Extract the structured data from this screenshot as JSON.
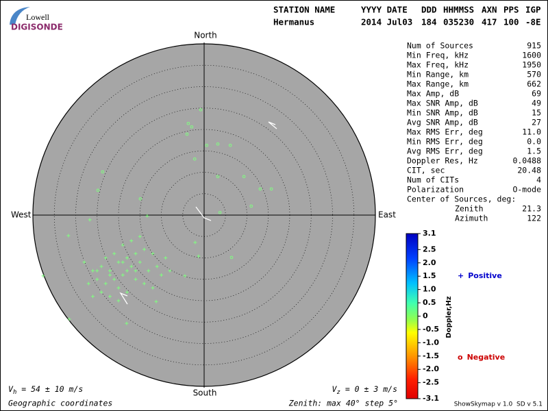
{
  "logo": {
    "top": "Lowell",
    "bottom": "DIGISONDE"
  },
  "header": {
    "columns": [
      "STATION NAME",
      "YYYY DATE",
      "DDD",
      "HHMMSS",
      "AXN",
      "PPS",
      "IGP"
    ],
    "values": [
      "Hermanus",
      "2014 Jul03",
      "184",
      "035230",
      "417",
      "100",
      "-8E"
    ]
  },
  "stats": {
    "rows": [
      [
        "Num of Sources",
        "915"
      ],
      [
        "Min Freq, kHz",
        "1600"
      ],
      [
        "Max Freq, kHz",
        "1950"
      ],
      [
        "Min Range, km",
        "570"
      ],
      [
        "Max Range, km",
        "662"
      ],
      [
        "Max Amp, dB",
        "69"
      ],
      [
        "Max SNR Amp, dB",
        "49"
      ],
      [
        "Min SNR Amp, dB",
        "15"
      ],
      [
        "Avg SNR Amp, dB",
        "27"
      ],
      [
        "Max RMS Err, deg",
        "11.0"
      ],
      [
        "Min RMS Err, deg",
        "0.0"
      ],
      [
        "Avg RMS Err, deg",
        "1.5"
      ],
      [
        "Doppler Res, Hz",
        "0.0488"
      ],
      [
        "CIT, sec",
        "20.48"
      ],
      [
        "Num of CITs",
        "4"
      ],
      [
        "Polarization",
        "O-mode"
      ]
    ],
    "center_title": "Center of Sources, deg:",
    "center": [
      [
        "Zenith",
        "21.3"
      ],
      [
        "Azimuth",
        "122"
      ]
    ]
  },
  "footer": {
    "vh": {
      "symbol": "V",
      "sub": "h",
      "text": " = 54 ± 10 m/s"
    },
    "vz": {
      "symbol": "V",
      "sub": "z",
      "text": " = 0 ± 3 m/s"
    },
    "coords": "Geographic coordinates",
    "zenith": "Zenith: max 40°  step 5°",
    "version": "ShowSkymap v 1.0  SD v 5.1"
  },
  "chart_data": {
    "type": "polar",
    "directions": {
      "north": "North",
      "south": "South",
      "east": "East",
      "west": "West"
    },
    "rlim": [
      0,
      40
    ],
    "rticks": [
      5,
      10,
      15,
      20,
      25,
      30,
      35,
      40
    ],
    "xlim": [
      -40,
      40
    ],
    "ylim": [
      -40,
      40
    ],
    "background": "#a6a6a6",
    "series": [
      {
        "name": "Positive",
        "marker": "+",
        "color": "#0000cc",
        "mark_color": "#80ff80",
        "x": [
          -26,
          -24,
          -22,
          -20,
          -18,
          -16,
          -19,
          -21,
          -23,
          -25,
          -17,
          -15,
          -14,
          -12,
          -13,
          -11,
          -20,
          -18,
          -22,
          -27,
          -24,
          -16,
          -10,
          -9,
          -21,
          -19,
          -23,
          -17,
          -15,
          -28,
          -26,
          -20,
          -14,
          -12,
          -8,
          -18,
          -22,
          -25,
          -19,
          -16,
          -31.7,
          -37.6,
          -31.5,
          -18.1,
          -11.2,
          -4.5,
          -2.1,
          -1.3,
          -13.3,
          -26.7
        ],
        "y": [
          -13,
          -12,
          -13,
          -11,
          -10,
          -9,
          -14,
          -15,
          -16,
          -15,
          -12,
          -11,
          -8,
          -9,
          -13,
          -12,
          -17,
          -18,
          -19,
          -16,
          -18,
          -15,
          -14,
          -10,
          -9,
          -7,
          -10,
          -6,
          -5,
          -11,
          -19,
          -20,
          -16,
          -17,
          -13,
          -13,
          -14,
          -13,
          -11,
          -13,
          -4.8,
          -14.2,
          -24.3,
          -25.3,
          -20.2,
          -14.2,
          -6.4,
          -9.6,
          -0.2,
          -1.1
        ]
      },
      {
        "name": "Negative",
        "marker": "o",
        "color": "#cc0000",
        "mark_color": "#80ff80",
        "x": [
          -0.8,
          -3.7,
          -2.9,
          -4,
          0.6,
          3.2,
          6.1,
          -2.2,
          3.2,
          9.3,
          13.1,
          15.7,
          -23.7,
          -24.8,
          -14.9,
          11,
          3.7,
          6.4
        ],
        "y": [
          24.6,
          21.4,
          20.6,
          18.9,
          16.3,
          16.6,
          16.3,
          13.1,
          9,
          9,
          6.1,
          6.1,
          10.1,
          5.8,
          3.8,
          2.1,
          0.6,
          -9.9
        ]
      }
    ],
    "colorbar": {
      "label": "Doppler,Hz",
      "lim": [
        -3.1,
        3.1
      ],
      "ticks": [
        3.1,
        2.5,
        {
          "value": 2,
          "label": "2.0"
        },
        1.5,
        {
          "value": 1,
          "label": "1.0"
        },
        0.5,
        0,
        -0.5,
        {
          "value": -1,
          "label": "-1.0"
        },
        -1.5,
        {
          "value": -2,
          "label": "-2.0"
        },
        -2.5,
        -3.1
      ]
    }
  }
}
